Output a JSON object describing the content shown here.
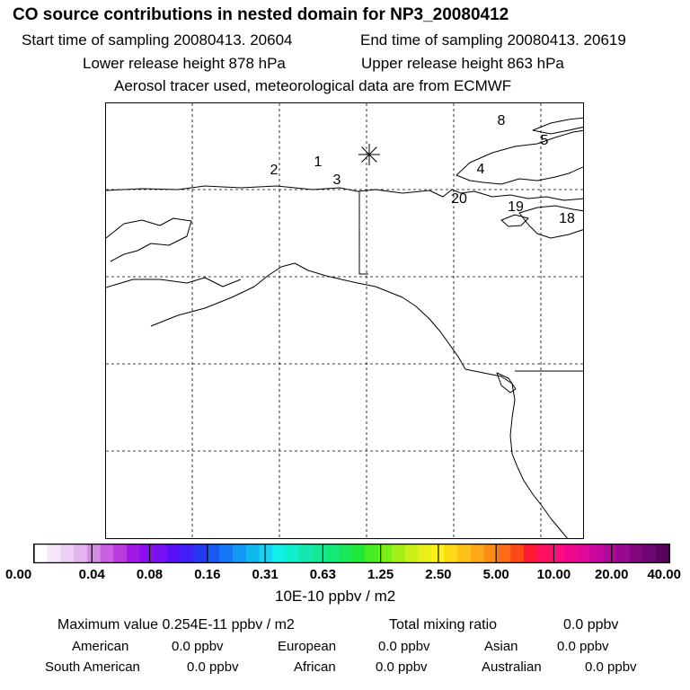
{
  "title": "CO  source contributions in nested domain for NP3_20080412",
  "start_label": "Start time of sampling 20080413. 20604",
  "end_label": "End time of sampling 20080413. 20619",
  "lower_label": "Lower release height  878 hPa",
  "upper_label": "Upper release height  863 hPa",
  "tracer_label": "Aerosol tracer used, meteorological data are from ECMWF",
  "map": {
    "markers": [
      {
        "label": "1"
      },
      {
        "label": "2"
      },
      {
        "label": "3"
      },
      {
        "label": "4"
      },
      {
        "label": "5"
      },
      {
        "label": "8"
      },
      {
        "label": "18"
      },
      {
        "label": "19"
      },
      {
        "label": "20"
      }
    ],
    "release_symbol": "star"
  },
  "colorbar": {
    "ticks": [
      "0.00",
      "0.04",
      "0.08",
      "0.16",
      "0.31",
      "0.63",
      "1.25",
      "2.50",
      "5.00",
      "10.00",
      "20.00",
      "40.00"
    ],
    "unit": "10E-10 ppbv / m2",
    "colors": [
      "#ffffff",
      "#f6e6fb",
      "#eed0f6",
      "#e3b4f0",
      "#d78ae8",
      "#c860e3",
      "#b83ae0",
      "#a018e8",
      "#8a10f0",
      "#7a10f4",
      "#5a10f6",
      "#4020f6",
      "#2438f4",
      "#1a58f4",
      "#1478f4",
      "#1498f4",
      "#10b8f2",
      "#10d4f0",
      "#10f0e8",
      "#10f0cc",
      "#14e8b0",
      "#14e894",
      "#14e878",
      "#18e858",
      "#20e838",
      "#48ec20",
      "#78f018",
      "#a0f018",
      "#c8f018",
      "#e8f018",
      "#fff018",
      "#ffd818",
      "#ffc018",
      "#ffa818",
      "#ff8c18",
      "#ff6c18",
      "#ff4818",
      "#ff1838",
      "#ff1060",
      "#ff0c80",
      "#f0088c",
      "#e00898",
      "#c8089c",
      "#b00898",
      "#980890",
      "#80087c",
      "#6c0670",
      "#56045c"
    ]
  },
  "footer": {
    "max_label": "Maximum value  0.254E-11 ppbv / m2",
    "total_label": "Total mixing ratio",
    "total_value": "0.0 ppbv",
    "american_label": "American",
    "american_value": "0.0 ppbv",
    "european_label": "European",
    "european_value": "0.0 ppbv",
    "asian_label": "Asian",
    "asian_value": "0.0 ppbv",
    "south_american_label": "South American",
    "south_american_value": "0.0 ppbv",
    "african_label": "African",
    "african_value": "0.0 ppbv",
    "australian_label": "Australian",
    "australian_value": "0.0 ppbv"
  }
}
